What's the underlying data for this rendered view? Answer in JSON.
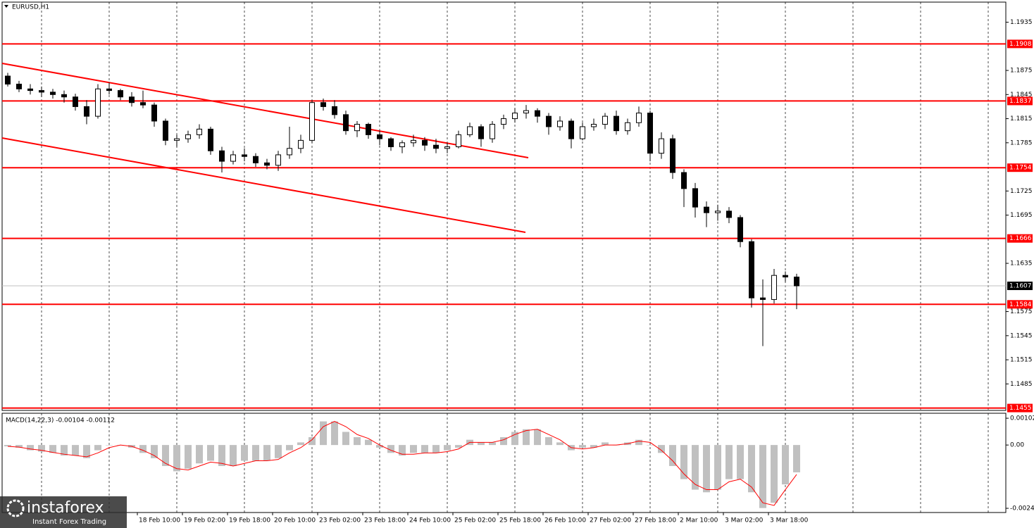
{
  "chart_data": [
    {
      "type": "candlestick",
      "title": "EURUSD,H1",
      "categories": [
        null,
        null,
        null,
        null,
        null,
        null,
        null,
        null,
        null,
        null,
        null,
        null,
        "18 Feb 10:00",
        null,
        null,
        null,
        "19 Feb 02:00",
        null,
        null,
        null,
        "19 Feb 18:00",
        null,
        null,
        null,
        "20 Feb 10:00",
        null,
        null,
        null,
        "23 Feb 02:00",
        null,
        null,
        null,
        "23 Feb 18:00",
        null,
        null,
        null,
        "24 Feb 10:00",
        null,
        null,
        null,
        "25 Feb 02:00",
        null,
        null,
        null,
        "25 Feb 18:00",
        null,
        null,
        null,
        "26 Feb 10:00",
        null,
        null,
        null,
        "27 Feb 02:00",
        null,
        null,
        null,
        "27 Feb 18:00",
        null,
        null,
        null,
        "2 Mar 10:00",
        null,
        null,
        null,
        "3 Mar 02:00",
        null,
        null,
        null,
        "3 Mar 18:00",
        null,
        null
      ],
      "ohlc": [
        [
          1.1868,
          1.1872,
          1.1855,
          1.1858
        ],
        [
          1.1858,
          1.1862,
          1.1848,
          1.1852
        ],
        [
          1.1852,
          1.1858,
          1.1845,
          1.185
        ],
        [
          1.185,
          1.1855,
          1.1842,
          1.1848
        ],
        [
          1.1848,
          1.1852,
          1.184,
          1.1845
        ],
        [
          1.1845,
          1.185,
          1.1835,
          1.1842
        ],
        [
          1.1842,
          1.1846,
          1.1825,
          1.183
        ],
        [
          1.183,
          1.1838,
          1.1808,
          1.1818
        ],
        [
          1.1818,
          1.1858,
          1.1815,
          1.1852
        ],
        [
          1.1852,
          1.186,
          1.1845,
          1.185
        ],
        [
          1.185,
          1.1852,
          1.1838,
          1.1842
        ],
        [
          1.1842,
          1.1848,
          1.183,
          1.1835
        ],
        [
          1.1835,
          1.185,
          1.1828,
          1.1832
        ],
        [
          1.1832,
          1.1835,
          1.1805,
          1.1812
        ],
        [
          1.1812,
          1.1815,
          1.1782,
          1.1788
        ],
        [
          1.1788,
          1.1795,
          1.178,
          1.179
        ],
        [
          1.179,
          1.18,
          1.1785,
          1.1795
        ],
        [
          1.1795,
          1.1808,
          1.179,
          1.1802
        ],
        [
          1.1802,
          1.1805,
          1.177,
          1.1775
        ],
        [
          1.1775,
          1.178,
          1.1748,
          1.1762
        ],
        [
          1.1762,
          1.1775,
          1.1758,
          1.177
        ],
        [
          1.177,
          1.1778,
          1.1762,
          1.1768
        ],
        [
          1.1768,
          1.1772,
          1.1755,
          1.176
        ],
        [
          1.176,
          1.1765,
          1.1752,
          1.1757
        ],
        [
          1.1757,
          1.1775,
          1.175,
          1.177
        ],
        [
          1.177,
          1.1805,
          1.1765,
          1.1778
        ],
        [
          1.1778,
          1.1795,
          1.1772,
          1.1788
        ],
        [
          1.1788,
          1.1838,
          1.1785,
          1.1835
        ],
        [
          1.1835,
          1.184,
          1.1825,
          1.183
        ],
        [
          1.183,
          1.1838,
          1.1815,
          1.182
        ],
        [
          1.182,
          1.1825,
          1.1795,
          1.18
        ],
        [
          1.18,
          1.1812,
          1.1792,
          1.1808
        ],
        [
          1.1808,
          1.181,
          1.179,
          1.1795
        ],
        [
          1.1795,
          1.18,
          1.1782,
          1.179
        ],
        [
          1.179,
          1.1792,
          1.1775,
          1.178
        ],
        [
          1.178,
          1.1788,
          1.1772,
          1.1785
        ],
        [
          1.1785,
          1.1795,
          1.178,
          1.1788
        ],
        [
          1.1788,
          1.1792,
          1.1775,
          1.1782
        ],
        [
          1.1782,
          1.179,
          1.1772,
          1.1778
        ],
        [
          1.1778,
          1.1785,
          1.1772,
          1.178
        ],
        [
          1.178,
          1.18,
          1.1778,
          1.1795
        ],
        [
          1.1795,
          1.181,
          1.1792,
          1.1805
        ],
        [
          1.1805,
          1.1808,
          1.178,
          1.179
        ],
        [
          1.179,
          1.1812,
          1.1785,
          1.1808
        ],
        [
          1.1808,
          1.182,
          1.1802,
          1.1815
        ],
        [
          1.1815,
          1.1828,
          1.181,
          1.1822
        ],
        [
          1.1822,
          1.1832,
          1.1815,
          1.1825
        ],
        [
          1.1825,
          1.1828,
          1.181,
          1.1818
        ],
        [
          1.1818,
          1.1822,
          1.1795,
          1.1805
        ],
        [
          1.1805,
          1.1818,
          1.18,
          1.1812
        ],
        [
          1.1812,
          1.1815,
          1.1778,
          1.179
        ],
        [
          1.179,
          1.181,
          1.1788,
          1.1805
        ],
        [
          1.1805,
          1.1815,
          1.18,
          1.1808
        ],
        [
          1.1808,
          1.1822,
          1.1802,
          1.1818
        ],
        [
          1.1818,
          1.1825,
          1.1795,
          1.18
        ],
        [
          1.18,
          1.1815,
          1.1795,
          1.181
        ],
        [
          1.181,
          1.183,
          1.1805,
          1.1822
        ],
        [
          1.1822,
          1.1825,
          1.1762,
          1.1772
        ],
        [
          1.1772,
          1.1798,
          1.1765,
          1.179
        ],
        [
          1.179,
          1.1795,
          1.174,
          1.1748
        ],
        [
          1.1748,
          1.1752,
          1.1705,
          1.1728
        ],
        [
          1.1728,
          1.1735,
          1.1692,
          1.1705
        ],
        [
          1.1705,
          1.1712,
          1.168,
          1.1698
        ],
        [
          1.1698,
          1.1708,
          1.1688,
          1.17
        ],
        [
          1.17,
          1.1705,
          1.1685,
          1.1692
        ],
        [
          1.1692,
          1.1695,
          1.1655,
          1.1662
        ],
        [
          1.1662,
          1.1665,
          1.158,
          1.1592
        ],
        [
          1.1592,
          1.1615,
          1.1532,
          1.159
        ],
        [
          1.159,
          1.1628,
          1.1585,
          1.162
        ],
        [
          1.162,
          1.1625,
          1.1612,
          1.1618
        ],
        [
          1.1618,
          1.1622,
          1.1578,
          1.1607
        ]
      ],
      "up_color": "#ffffff",
      "down_color": "#000000",
      "ylim": [
        1.1452,
        1.196
      ],
      "yticks": [
        1.1935,
        1.1875,
        1.1845,
        1.1815,
        1.1785,
        1.1725,
        1.1695,
        1.1635,
        1.1575,
        1.1545,
        1.1515,
        1.1485
      ],
      "levels": {
        "values": [
          1.1908,
          1.1837,
          1.1754,
          1.1666,
          1.1584,
          1.1455
        ],
        "color": "#ff0000"
      },
      "last_price": 1.1607
    },
    {
      "type": "macd",
      "title": "MACD(14,22,3) -0.00104 -0.00112",
      "histogram": {
        "color": "#c0c0c0",
        "values": [
          -5e-05,
          -0.0001,
          -0.0002,
          -0.00025,
          -0.0003,
          -0.0004,
          -0.0004,
          -0.0005,
          -0.0002,
          0,
          0,
          -0.0001,
          -0.0003,
          -0.0005,
          -0.0008,
          -0.001,
          -0.0009,
          -0.0007,
          -0.0006,
          -0.0008,
          -0.0008,
          -0.0006,
          -0.0006,
          -0.0006,
          -0.0005,
          -0.0002,
          0.0001,
          0.0003,
          0.0009,
          0.0009,
          0.0005,
          0.0003,
          0.0002,
          -0.0001,
          -0.0003,
          -0.0004,
          -0.0003,
          -0.0003,
          -0.0003,
          -0.0002,
          -0.0001,
          0.0002,
          0.0001,
          0.0001,
          0.0003,
          0.0005,
          0.0006,
          0.0006,
          0.0003,
          0.0001,
          -0.0002,
          -0.0001,
          -0.0001,
          0.0001,
          0,
          0.0001,
          0.0002,
          0,
          -0.0003,
          -0.0008,
          -0.0013,
          -0.0017,
          -0.0018,
          -0.0017,
          -0.0013,
          -0.0013,
          -0.0018,
          -0.0024,
          -0.0022,
          -0.0015,
          -0.00104
        ]
      },
      "signal": {
        "color": "#ff0000",
        "values": [
          -5e-05,
          -8e-05,
          -0.00015,
          -0.0002,
          -0.00028,
          -0.00035,
          -0.0004,
          -0.00045,
          -0.0003,
          -0.0001,
          0,
          -5e-05,
          -0.0002,
          -0.0004,
          -0.0007,
          -0.0009,
          -0.00095,
          -0.0008,
          -0.00065,
          -0.0007,
          -0.0008,
          -0.0007,
          -0.0006,
          -0.0006,
          -0.00055,
          -0.0003,
          -0.0001,
          0.0002,
          0.0007,
          0.0009,
          0.0007,
          0.0004,
          0.00025,
          0,
          -0.0002,
          -0.00035,
          -0.00035,
          -0.0003,
          -0.0003,
          -0.00025,
          -0.00015,
          0.0001,
          0.0001,
          0.0001,
          0.0002,
          0.0004,
          0.00055,
          0.0006,
          0.0004,
          0.0002,
          -0.0001,
          -0.00015,
          -0.0001,
          0,
          0,
          5e-05,
          0.00015,
          0.0001,
          -0.0002,
          -0.0006,
          -0.0011,
          -0.0015,
          -0.0017,
          -0.0017,
          -0.0014,
          -0.0013,
          -0.0016,
          -0.0022,
          -0.0023,
          -0.0017,
          -0.00112
        ]
      },
      "ylim": [
        -0.00257,
        0.00121
      ],
      "yticks": [
        0.00102,
        {
          "value": 0,
          "label": "0.00"
        },
        -0.00241
      ]
    }
  ],
  "logo": {
    "name": "instaforex",
    "tagline": "Instant Forex Trading"
  }
}
